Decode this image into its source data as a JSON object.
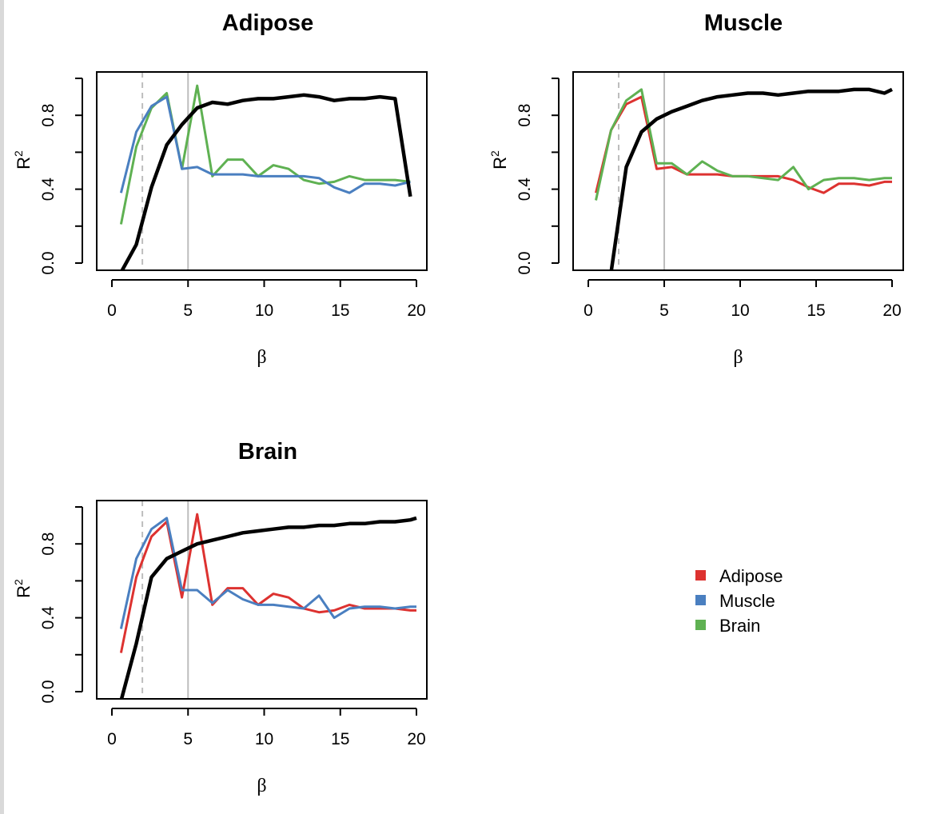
{
  "colors": {
    "Adipose": "#dd3230",
    "Muscle": "#4a7fc0",
    "Brain": "#5fb152",
    "reference": "#000000",
    "vline": "#bdbdbd"
  },
  "legend": {
    "position": "bottom-right",
    "entries": [
      "Adipose",
      "Muscle",
      "Brain"
    ]
  },
  "chart_data": [
    {
      "type": "line",
      "title": "Adipose",
      "xlabel": "β",
      "ylabel": "R",
      "ylabel_sup": "2",
      "xlim": [
        0,
        20
      ],
      "ylim": [
        0,
        1
      ],
      "xticks": [
        "0",
        "5",
        "10",
        "15",
        "20"
      ],
      "yticks": [
        "0.0",
        "0.4",
        "0.8"
      ],
      "vlines": [
        {
          "x": 2,
          "style": "dashed"
        },
        {
          "x": 5,
          "style": "solid"
        }
      ],
      "x": [
        0.6,
        1.6,
        2.6,
        3.6,
        4.6,
        5.6,
        6.6,
        7.6,
        8.6,
        9.6,
        10.6,
        11.6,
        12.6,
        13.6,
        14.6,
        15.6,
        16.6,
        17.6,
        18.6,
        19.6
      ],
      "reference": [
        -0.05,
        0.1,
        0.41,
        0.64,
        0.75,
        0.84,
        0.87,
        0.86,
        0.88,
        0.89,
        0.89,
        0.9,
        0.91,
        0.9,
        0.88,
        0.89,
        0.89,
        0.9,
        0.89,
        0.36
      ],
      "series": [
        {
          "name": "Brain",
          "values": [
            0.21,
            0.63,
            0.84,
            0.92,
            0.51,
            0.96,
            0.47,
            0.56,
            0.56,
            0.47,
            0.53,
            0.51,
            0.45,
            0.43,
            0.44,
            0.47,
            0.45,
            0.45,
            0.45,
            0.44
          ]
        },
        {
          "name": "Muscle",
          "values": [
            0.38,
            0.71,
            0.85,
            0.9,
            0.51,
            0.52,
            0.48,
            0.48,
            0.48,
            0.47,
            0.47,
            0.47,
            0.47,
            0.46,
            0.41,
            0.38,
            0.43,
            0.43,
            0.42,
            0.44
          ]
        }
      ]
    },
    {
      "type": "line",
      "title": "Muscle",
      "xlabel": "β",
      "ylabel": "R",
      "ylabel_sup": "2",
      "xlim": [
        0,
        20
      ],
      "ylim": [
        0,
        1
      ],
      "xticks": [
        "0",
        "5",
        "10",
        "15",
        "20"
      ],
      "yticks": [
        "0.0",
        "0.4",
        "0.8"
      ],
      "vlines": [
        {
          "x": 2,
          "style": "dashed"
        },
        {
          "x": 5,
          "style": "solid"
        }
      ],
      "x": [
        0.5,
        1.5,
        2.5,
        3.5,
        4.5,
        5.5,
        6.5,
        7.5,
        8.5,
        9.5,
        10.5,
        11.5,
        12.5,
        13.5,
        14.5,
        15.5,
        16.5,
        17.5,
        18.5,
        19.5,
        20
      ],
      "reference": [
        -1.0,
        -0.05,
        0.52,
        0.71,
        0.78,
        0.82,
        0.85,
        0.88,
        0.9,
        0.91,
        0.92,
        0.92,
        0.91,
        0.92,
        0.93,
        0.93,
        0.93,
        0.94,
        0.94,
        0.92,
        0.94
      ],
      "series": [
        {
          "name": "Adipose",
          "values": [
            0.38,
            0.72,
            0.86,
            0.9,
            0.51,
            0.52,
            0.48,
            0.48,
            0.48,
            0.47,
            0.47,
            0.47,
            0.47,
            0.45,
            0.41,
            0.38,
            0.43,
            0.43,
            0.42,
            0.44,
            0.44
          ]
        },
        {
          "name": "Brain",
          "values": [
            0.34,
            0.72,
            0.88,
            0.94,
            0.54,
            0.54,
            0.48,
            0.55,
            0.5,
            0.47,
            0.47,
            0.46,
            0.45,
            0.52,
            0.4,
            0.45,
            0.46,
            0.46,
            0.45,
            0.46,
            0.46
          ]
        }
      ]
    },
    {
      "type": "line",
      "title": "Brain",
      "xlabel": "β",
      "ylabel": "R",
      "ylabel_sup": "2",
      "xlim": [
        0,
        20
      ],
      "ylim": [
        0,
        1
      ],
      "xticks": [
        "0",
        "5",
        "10",
        "15",
        "20"
      ],
      "yticks": [
        "0.0",
        "0.4",
        "0.8"
      ],
      "vlines": [
        {
          "x": 2,
          "style": "dashed"
        },
        {
          "x": 5,
          "style": "solid"
        }
      ],
      "x": [
        0.6,
        1.6,
        2.6,
        3.6,
        4.6,
        5.6,
        6.6,
        7.6,
        8.6,
        9.6,
        10.6,
        11.6,
        12.6,
        13.6,
        14.6,
        15.6,
        16.6,
        17.6,
        18.6,
        19.6,
        20
      ],
      "reference": [
        -0.05,
        0.26,
        0.62,
        0.72,
        0.76,
        0.8,
        0.82,
        0.84,
        0.86,
        0.87,
        0.88,
        0.89,
        0.89,
        0.9,
        0.9,
        0.91,
        0.91,
        0.92,
        0.92,
        0.93,
        0.94
      ],
      "series": [
        {
          "name": "Adipose",
          "values": [
            0.21,
            0.62,
            0.84,
            0.92,
            0.51,
            0.96,
            0.47,
            0.56,
            0.56,
            0.47,
            0.53,
            0.51,
            0.45,
            0.43,
            0.44,
            0.47,
            0.45,
            0.45,
            0.45,
            0.44,
            0.44
          ]
        },
        {
          "name": "Muscle",
          "values": [
            0.34,
            0.72,
            0.88,
            0.94,
            0.55,
            0.55,
            0.48,
            0.55,
            0.5,
            0.47,
            0.47,
            0.46,
            0.45,
            0.52,
            0.4,
            0.45,
            0.46,
            0.46,
            0.45,
            0.46,
            0.46
          ]
        }
      ]
    }
  ]
}
